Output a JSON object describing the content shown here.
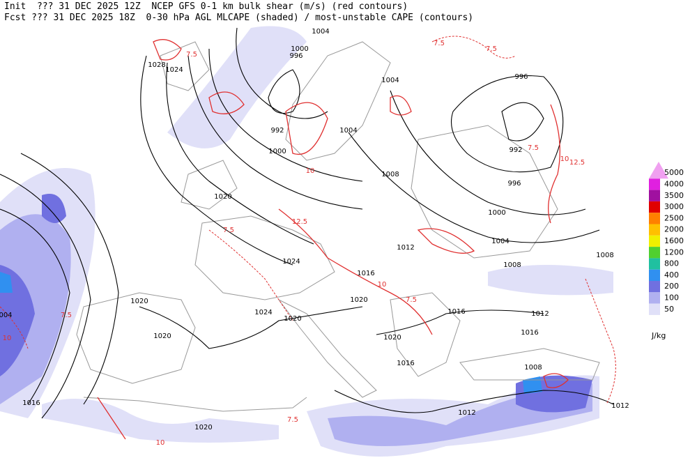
{
  "header": {
    "init_line": "Init  ??? 31 DEC 2025 12Z  NCEP GFS 0-1 km bulk shear (m/s) (red contours)",
    "fcst_line": "Fcst ??? 31 DEC 2025 18Z  0-30 hPa AGL MLCAPE (shaded) / most-unstable CAPE (contours)"
  },
  "legend": {
    "unit": "J/kg",
    "levels": [
      {
        "label": "5000",
        "color": "#f0a0f0"
      },
      {
        "label": "4000",
        "color": "#e020e0"
      },
      {
        "label": "3500",
        "color": "#a010a0"
      },
      {
        "label": "3000",
        "color": "#e00000"
      },
      {
        "label": "2500",
        "color": "#ff8000"
      },
      {
        "label": "2000",
        "color": "#ffc000"
      },
      {
        "label": "1600",
        "color": "#f0f000"
      },
      {
        "label": "1200",
        "color": "#50d030"
      },
      {
        "label": "800",
        "color": "#20c0a0"
      },
      {
        "label": "400",
        "color": "#3090f0"
      },
      {
        "label": "200",
        "color": "#7070e0"
      },
      {
        "label": "100",
        "color": "#b0b0f0"
      },
      {
        "label": "50",
        "color": "#e0e0f8"
      }
    ]
  },
  "contour_labels": [
    "1004",
    "1000",
    "996",
    "1028",
    "1024",
    "1004",
    "996",
    "1004",
    "992",
    "992",
    "1000",
    "1008",
    "996",
    "1020",
    "1000",
    "1004",
    "1012",
    "1008",
    "1024",
    "1008",
    "1016",
    "1020",
    "1020",
    "1024",
    "1016",
    "1020",
    "1012",
    "1016",
    "1020",
    "1020",
    "1016",
    "1008",
    "1016",
    "1012",
    "1012",
    "1020",
    "004"
  ],
  "shear_labels": [
    "7.5",
    "10",
    "12.5",
    "7.5",
    "10",
    "12.5",
    "7.5",
    "7.5",
    "7.5",
    "7.5",
    "10",
    "7.5",
    "10",
    "7.5",
    "10"
  ]
}
